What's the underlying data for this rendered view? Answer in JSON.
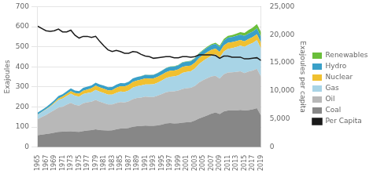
{
  "chart_data": {
    "type": "area",
    "stacked": true,
    "x": [
      1965,
      1966,
      1967,
      1968,
      1969,
      1970,
      1971,
      1972,
      1973,
      1974,
      1975,
      1976,
      1977,
      1978,
      1979,
      1980,
      1981,
      1982,
      1983,
      1984,
      1985,
      1986,
      1987,
      1988,
      1989,
      1990,
      1991,
      1992,
      1993,
      1994,
      1995,
      1996,
      1997,
      1998,
      1999,
      2000,
      2001,
      2002,
      2003,
      2004,
      2005,
      2006,
      2007,
      2008,
      2009,
      2010,
      2011,
      2012,
      2013,
      2014,
      2015,
      2016,
      2017,
      2018,
      2019
    ],
    "xlim": [
      1965,
      2019
    ],
    "xticks": [
      1965,
      1967,
      1969,
      1971,
      1973,
      1975,
      1977,
      1979,
      1981,
      1983,
      1985,
      1987,
      1989,
      1991,
      1993,
      1995,
      1997,
      1999,
      2001,
      2003,
      2005,
      2007,
      2009,
      2011,
      2013,
      2015,
      2017,
      2019
    ],
    "ylim": [
      0,
      700
    ],
    "yticks": [
      0,
      100,
      200,
      300,
      400,
      500,
      600,
      700
    ],
    "y2lim": [
      0,
      25000
    ],
    "y2ticks": [
      0,
      {
        "value": 5000,
        "label": "5,000"
      },
      {
        "value": 10000,
        "label": "10,000"
      },
      {
        "value": 15000,
        "label": "15,000"
      },
      {
        "value": 20000,
        "label": "20,000"
      },
      {
        "value": 25000,
        "label": "25,000"
      }
    ],
    "ylabel": "Exajoules",
    "y2label": "Exajoules per capita",
    "grid": true,
    "legend": "right",
    "series": [
      {
        "name": "Coal",
        "color": "#878787",
        "values": [
          59,
          62,
          65,
          68,
          72,
          76,
          77,
          78,
          79,
          77,
          76,
          80,
          83,
          85,
          88,
          85,
          84,
          83,
          84,
          88,
          92,
          92,
          95,
          101,
          104,
          105,
          107,
          106,
          106,
          108,
          112,
          118,
          120,
          118,
          119,
          122,
          124,
          125,
          132,
          142,
          150,
          158,
          167,
          172,
          165,
          177,
          182,
          182,
          182,
          185,
          182,
          184,
          188,
          194,
          157
        ]
      },
      {
        "name": "Oil",
        "color": "#b8b8b8",
        "values": [
          80,
          88,
          95,
          104,
          112,
          121,
          124,
          133,
          141,
          133,
          131,
          138,
          140,
          141,
          147,
          141,
          135,
          129,
          128,
          131,
          132,
          130,
          133,
          138,
          141,
          142,
          144,
          144,
          144,
          148,
          152,
          155,
          157,
          160,
          163,
          168,
          169,
          170,
          172,
          180,
          183,
          185,
          185,
          183,
          176,
          186,
          190,
          191,
          192,
          192,
          187,
          192,
          193,
          196,
          193
        ]
      },
      {
        "name": "Gas",
        "color": "#a8d4e6",
        "values": [
          22,
          24,
          27,
          29,
          33,
          38,
          41,
          43,
          46,
          45,
          44,
          46,
          46,
          47,
          50,
          50,
          50,
          49,
          49,
          51,
          53,
          53,
          54,
          57,
          58,
          60,
          61,
          62,
          63,
          65,
          68,
          70,
          73,
          74,
          75,
          80,
          81,
          82,
          87,
          92,
          96,
          100,
          103,
          107,
          104,
          113,
          118,
          120,
          124,
          128,
          130,
          134,
          138,
          143,
          141
        ]
      },
      {
        "name": "Nuclear",
        "color": "#f0c030",
        "values": [
          1,
          1,
          2,
          3,
          5,
          7,
          9,
          11,
          13,
          14,
          15,
          17,
          18,
          20,
          21,
          21,
          22,
          22,
          23,
          25,
          26,
          27,
          28,
          29,
          29,
          29,
          30,
          29,
          29,
          29,
          29,
          30,
          30,
          29,
          30,
          30,
          30,
          29,
          29,
          29,
          30,
          30,
          30,
          29,
          29,
          30,
          30,
          30,
          30,
          29,
          28,
          29,
          29,
          29,
          28
        ]
      },
      {
        "name": "Hydro",
        "color": "#3aa0c8",
        "values": [
          10,
          10,
          10,
          11,
          11,
          12,
          12,
          13,
          13,
          13,
          13,
          14,
          14,
          14,
          15,
          15,
          15,
          15,
          15,
          16,
          16,
          16,
          16,
          17,
          17,
          17,
          18,
          18,
          18,
          19,
          19,
          20,
          20,
          20,
          21,
          21,
          21,
          21,
          21,
          22,
          22,
          23,
          23,
          23,
          24,
          25,
          25,
          25,
          26,
          26,
          27,
          27,
          28,
          29,
          29
        ]
      },
      {
        "name": "Renewables",
        "color": "#6abe3a",
        "values": [
          0,
          0,
          0,
          0,
          0,
          0,
          0,
          0,
          0,
          0,
          0,
          0,
          0,
          0,
          0,
          0,
          0,
          0,
          0,
          0,
          0,
          0,
          0,
          0,
          0,
          1,
          1,
          1,
          1,
          1,
          1,
          1,
          2,
          2,
          2,
          2,
          2,
          3,
          3,
          3,
          4,
          4,
          5,
          6,
          7,
          8,
          9,
          10,
          11,
          13,
          15,
          17,
          19,
          22,
          25
        ]
      },
      {
        "name": "Per Capita",
        "type": "line",
        "axis": "y2",
        "color": "#1a1a1a",
        "values": [
          21500,
          21100,
          20700,
          20600,
          20700,
          21000,
          20500,
          20500,
          20800,
          19900,
          19400,
          19700,
          19700,
          19500,
          19700,
          18800,
          18000,
          17300,
          17000,
          17200,
          17000,
          16700,
          16700,
          17000,
          16900,
          16500,
          16200,
          16100,
          15800,
          15900,
          16000,
          16100,
          16100,
          15900,
          15900,
          16100,
          16100,
          16000,
          16100,
          16400,
          16400,
          16400,
          16400,
          16300,
          15800,
          16200,
          16200,
          16000,
          16000,
          16000,
          15700,
          15700,
          15800,
          15900,
          15400
        ]
      }
    ]
  }
}
